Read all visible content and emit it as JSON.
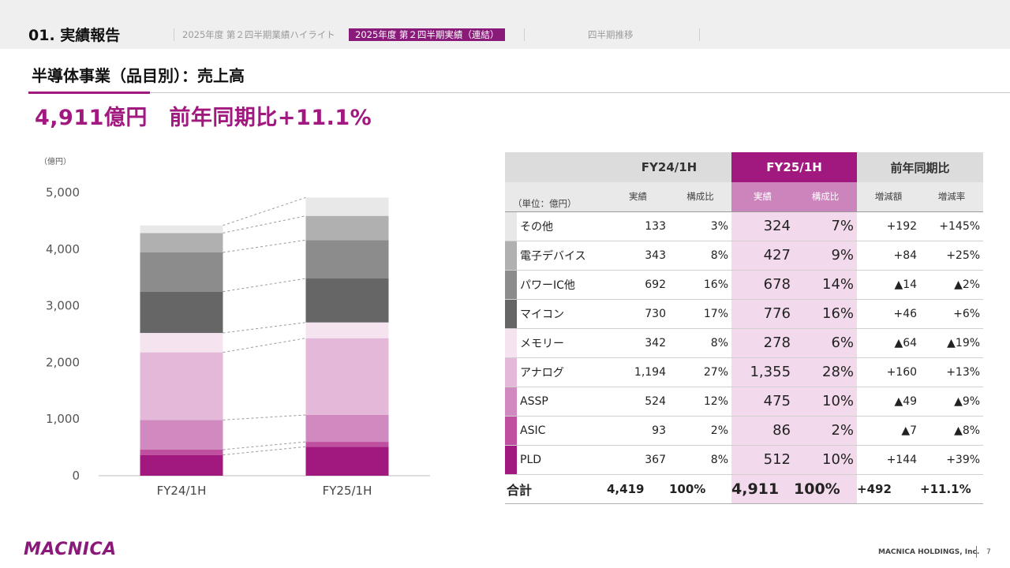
{
  "header": {
    "section_title": "01. 実績報告",
    "nav": [
      {
        "label": "2025年度 第２四半期業績ハイライト",
        "active": false
      },
      {
        "label": "2025年度 第２四半期実績（連結）",
        "active": true
      },
      {
        "label": "四半期推移",
        "active": false
      }
    ]
  },
  "subtitle": "半導体事業（品目別）：売上高",
  "headline": "4,911億円　前年同期比+11.1%",
  "chart_data": {
    "type": "bar",
    "stacked": true,
    "unit_label": "（億円）",
    "y_ticks": [
      "0",
      "1,000",
      "2,000",
      "3,000",
      "4,000",
      "5,000"
    ],
    "ylim": [
      0,
      5000
    ],
    "categories": [
      "FY24/1H",
      "FY25/1H"
    ],
    "series": [
      {
        "name": "PLD",
        "values": [
          367,
          512
        ],
        "color": "#a1187f"
      },
      {
        "name": "ASIC",
        "values": [
          93,
          86
        ],
        "color": "#bf4f9f"
      },
      {
        "name": "ASSP",
        "values": [
          524,
          475
        ],
        "color": "#d08ac0"
      },
      {
        "name": "アナログ",
        "values": [
          1194,
          1355
        ],
        "color": "#e4b8d8"
      },
      {
        "name": "メモリー",
        "values": [
          342,
          278
        ],
        "color": "#f5e4f0"
      },
      {
        "name": "マイコン",
        "values": [
          730,
          776
        ],
        "color": "#666666"
      },
      {
        "name": "パワーIC他",
        "values": [
          692,
          678
        ],
        "color": "#8c8c8c"
      },
      {
        "name": "電子デバイス",
        "values": [
          343,
          427
        ],
        "color": "#b0b0b0"
      },
      {
        "name": "その他",
        "values": [
          133,
          324
        ],
        "color": "#e8e8e8"
      }
    ]
  },
  "table": {
    "group_headers": [
      "FY24/1H",
      "FY25/1H",
      "前年同期比"
    ],
    "unit": "（単位：億円）",
    "sub_headers": [
      "実績",
      "構成比",
      "実績",
      "構成比",
      "増減額",
      "増減率"
    ],
    "rows": [
      {
        "name": "その他",
        "color": "#e8e8e8",
        "v24": "133",
        "s24": "3%",
        "v25": "324",
        "s25": "7%",
        "diff": "+192",
        "rate": "+145%"
      },
      {
        "name": "電子デバイス",
        "color": "#b0b0b0",
        "v24": "343",
        "s24": "8%",
        "v25": "427",
        "s25": "9%",
        "diff": "+84",
        "rate": "+25%"
      },
      {
        "name": "パワーIC他",
        "color": "#8c8c8c",
        "v24": "692",
        "s24": "16%",
        "v25": "678",
        "s25": "14%",
        "diff": "▲14",
        "rate": "▲2%"
      },
      {
        "name": "マイコン",
        "color": "#666666",
        "v24": "730",
        "s24": "17%",
        "v25": "776",
        "s25": "16%",
        "diff": "+46",
        "rate": "+6%"
      },
      {
        "name": "メモリー",
        "color": "#f5e4f0",
        "v24": "342",
        "s24": "8%",
        "v25": "278",
        "s25": "6%",
        "diff": "▲64",
        "rate": "▲19%"
      },
      {
        "name": "アナログ",
        "color": "#e4b8d8",
        "v24": "1,194",
        "s24": "27%",
        "v25": "1,355",
        "s25": "28%",
        "diff": "+160",
        "rate": "+13%"
      },
      {
        "name": "ASSP",
        "color": "#d08ac0",
        "v24": "524",
        "s24": "12%",
        "v25": "475",
        "s25": "10%",
        "diff": "▲49",
        "rate": "▲9%"
      },
      {
        "name": "ASIC",
        "color": "#bf4f9f",
        "v24": "93",
        "s24": "2%",
        "v25": "86",
        "s25": "2%",
        "diff": "▲7",
        "rate": "▲8%"
      },
      {
        "name": "PLD",
        "color": "#a1187f",
        "v24": "367",
        "s24": "8%",
        "v25": "512",
        "s25": "10%",
        "diff": "+144",
        "rate": "+39%"
      }
    ],
    "total": {
      "name": "合計",
      "v24": "4,419",
      "s24": "100%",
      "v25": "4,911",
      "s25": "100%",
      "diff": "+492",
      "rate": "+11.1%"
    }
  },
  "footer": {
    "logo": "MACNICA",
    "company": "MACNICA HOLDINGS, Inc.",
    "page": "7"
  }
}
